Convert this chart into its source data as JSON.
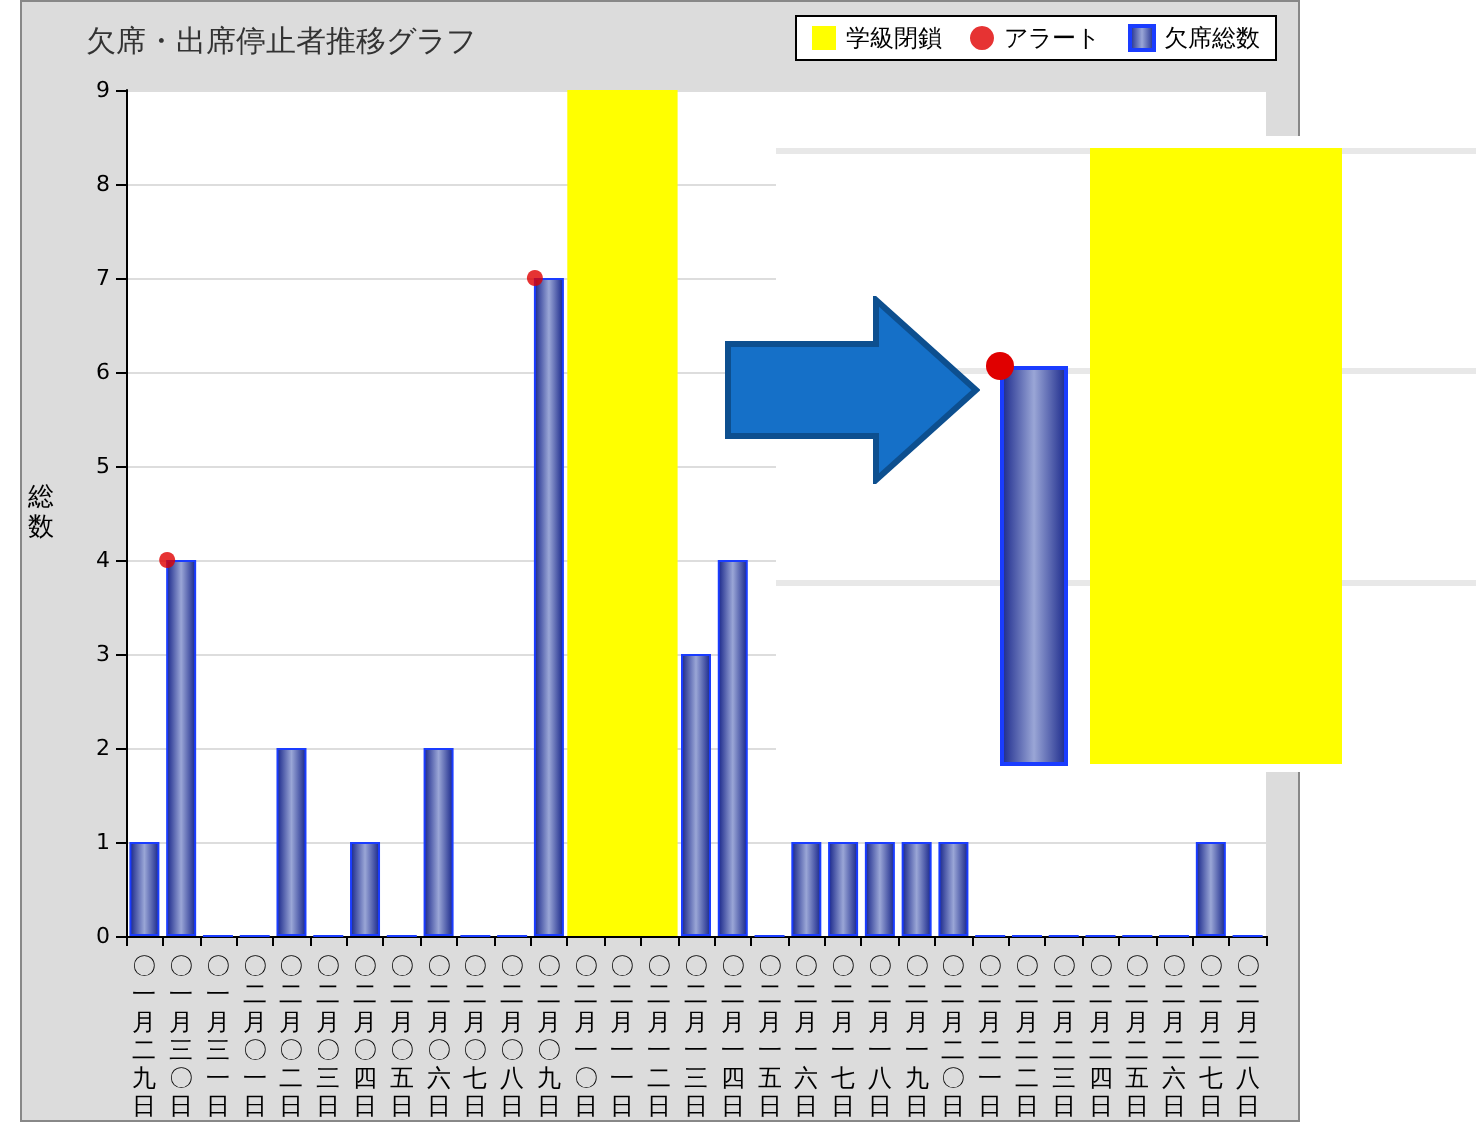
{
  "chart_data": {
    "type": "bar",
    "title": "欠席・出席停止者推移グラフ",
    "ylabel": "総数",
    "categories": [
      "〇一月二九日",
      "〇一月三〇日",
      "〇一月三一日",
      "〇二月〇一日",
      "〇二月〇二日",
      "〇二月〇三日",
      "〇二月〇四日",
      "〇二月〇五日",
      "〇二月〇六日",
      "〇二月〇七日",
      "〇二月〇八日",
      "〇二月〇九日",
      "〇二月一〇日",
      "〇二月一一日",
      "〇二月一二日",
      "〇二月一三日",
      "〇二月一四日",
      "〇二月一五日",
      "〇二月一六日",
      "〇二月一七日",
      "〇二月一八日",
      "〇二月一九日",
      "〇二月二〇日",
      "〇二月二一日",
      "〇二月二二日",
      "〇二月二三日",
      "〇二月二四日",
      "〇二月二五日",
      "〇二月二六日",
      "〇二月二七日",
      "〇二月二八日"
    ],
    "series": [
      {
        "name": "欠席総数",
        "color": "#1a3cff",
        "values": [
          1,
          4,
          0,
          0,
          2,
          0,
          1,
          0,
          2,
          0,
          0,
          7,
          null,
          null,
          null,
          3,
          4,
          0,
          1,
          1,
          1,
          1,
          1,
          0,
          0,
          0,
          0,
          0,
          0,
          1,
          0
        ]
      },
      {
        "name": "アラート",
        "type": "scatter",
        "color": "#e00000",
        "values": [
          null,
          4,
          null,
          null,
          null,
          null,
          null,
          null,
          null,
          null,
          null,
          7,
          null,
          null,
          null,
          null,
          null,
          null,
          null,
          null,
          null,
          null,
          null,
          null,
          null,
          null,
          null,
          null,
          null,
          null,
          null
        ]
      }
    ],
    "bands": [
      {
        "axis": "x",
        "from": "〇二月一〇日",
        "to": "〇二月一二日",
        "label": "学級閉鎖",
        "color": "#ffff00"
      }
    ],
    "ylim": [
      0,
      9
    ],
    "yticks": [
      0,
      1,
      2,
      3,
      4,
      5,
      6,
      7,
      8,
      9
    ],
    "grid": "y",
    "legend": "top right",
    "marker": "circle"
  }
}
